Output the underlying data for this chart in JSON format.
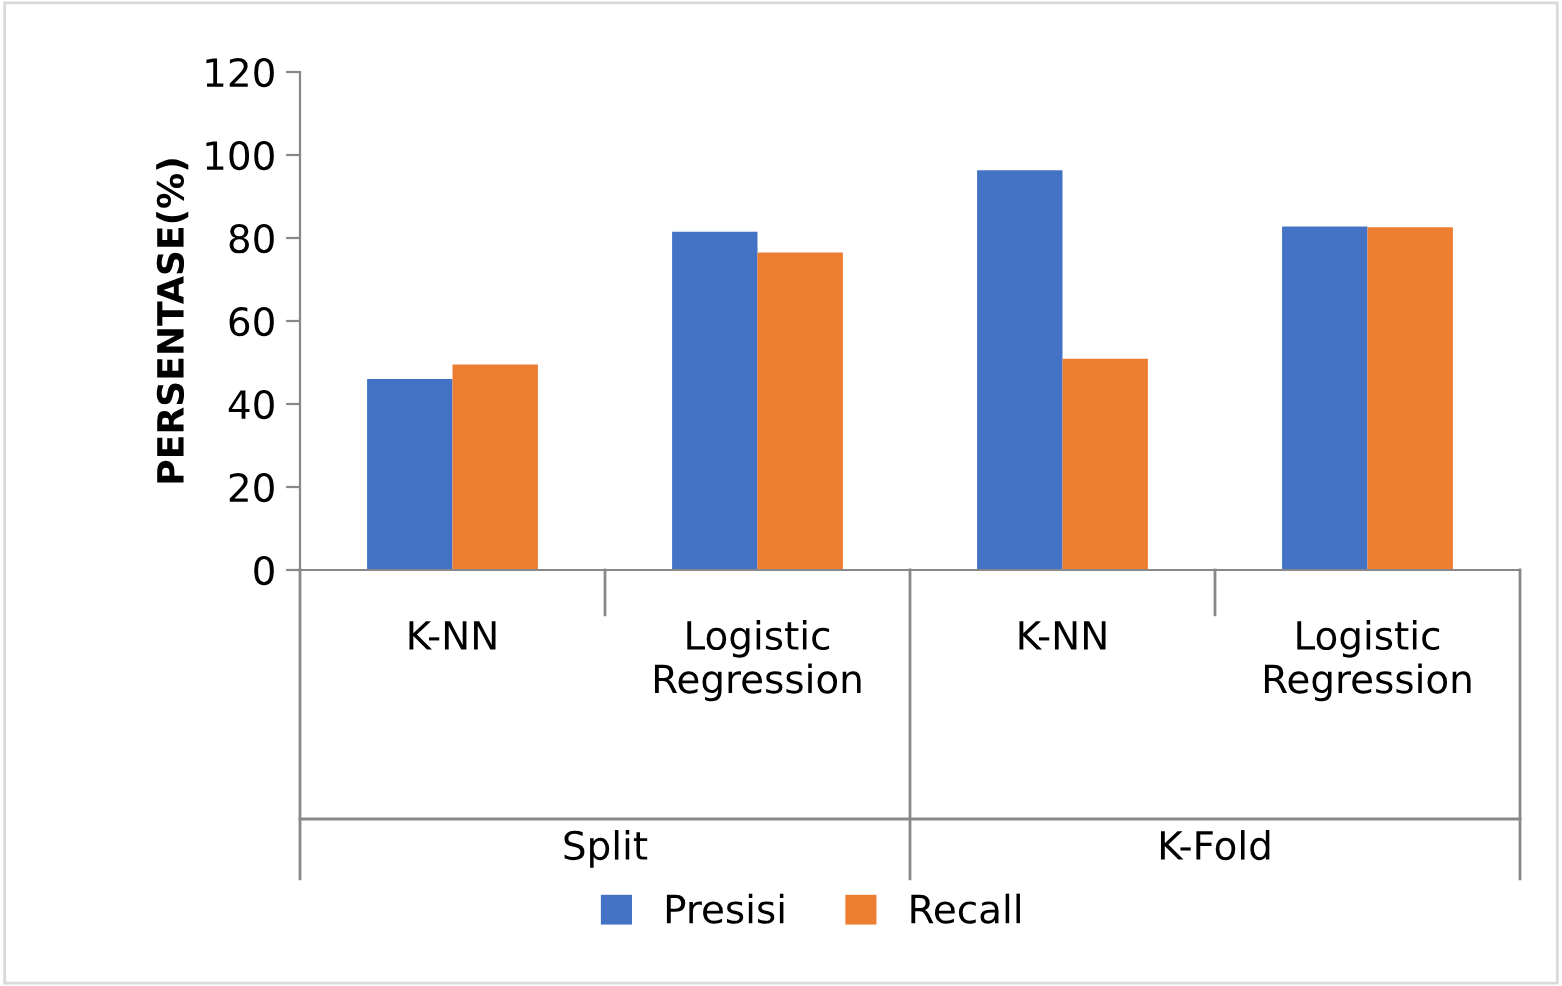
{
  "chart_data": {
    "type": "bar",
    "ylabel": "PERSENTASE(%)",
    "categories": [
      "K-NN",
      "Logistic\nRegression",
      "K-NN",
      "Logistic\nRegression"
    ],
    "series": [
      {
        "name": "Presisi",
        "color": "#4472c4",
        "values": [
          46.0,
          81.5,
          96.3,
          82.8
        ]
      },
      {
        "name": "Recall",
        "color": "#ed7d31",
        "values": [
          49.5,
          76.5,
          50.9,
          82.6
        ]
      }
    ],
    "annotations": [
      "Split",
      "K-Fold"
    ],
    "ylim": [
      0,
      120
    ],
    "yticks": [
      0,
      20,
      40,
      60,
      80,
      100,
      120
    ],
    "grid": false,
    "legend": "bottom"
  }
}
